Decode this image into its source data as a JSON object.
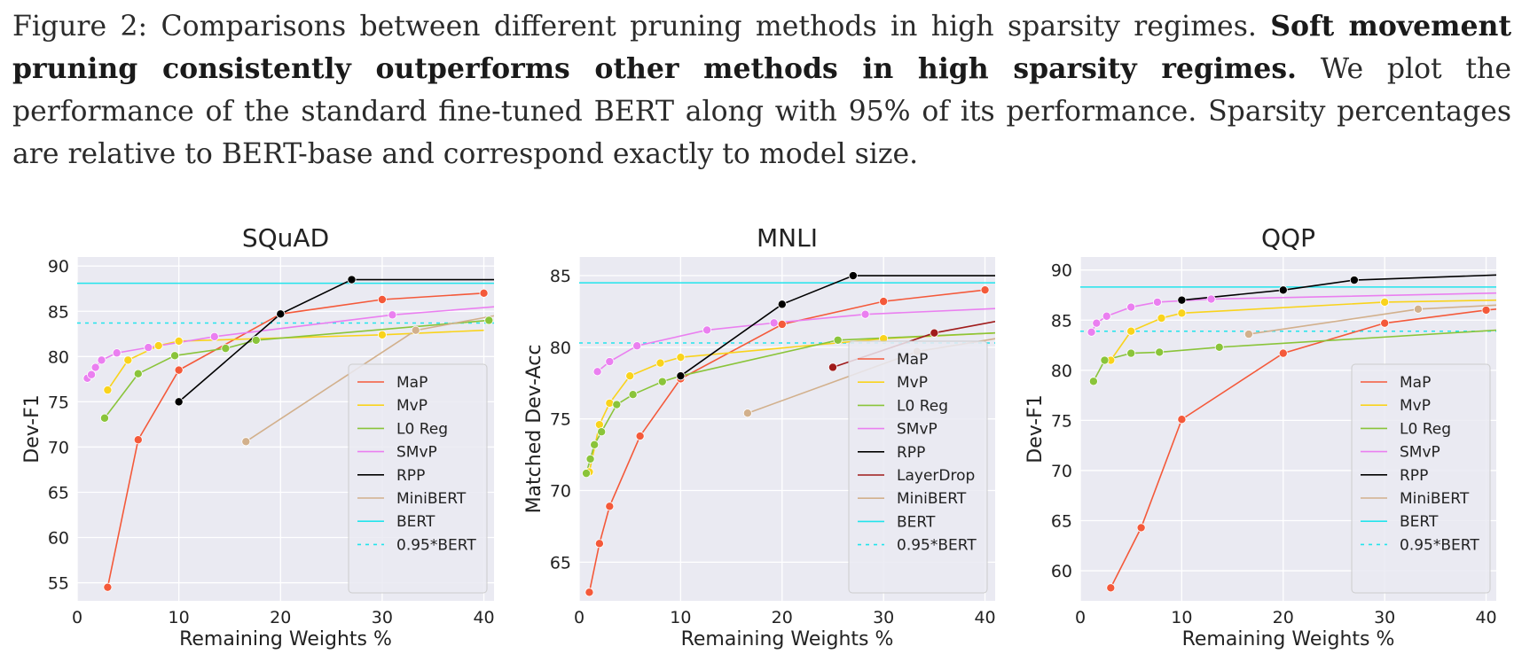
{
  "caption": {
    "prefix": "Figure 2: Comparisons between different pruning methods in high sparsity regimes. ",
    "bold": "Soft movement pruning consistently outperforms other methods in high sparsity regimes.",
    "suffix": " We plot the performance of the standard fine-tuned BERT along with 95% of its performance. Sparsity percentages are relative to BERT-base and correspond exactly to model size."
  },
  "colors": {
    "MaP": "#f4593a",
    "MvP": "#f9d31c",
    "L0 Reg": "#8ac43a",
    "SMvP": "#ea7ff0",
    "RPP": "#000000",
    "LayerDrop": "#a01b1b",
    "MiniBERT": "#d2b08c",
    "BERT": "#22e4ec",
    "0.95*BERT": "#22e4ec",
    "panel_bg": "#eaeaf2",
    "grid": "#ffffff"
  },
  "chart_data": [
    {
      "type": "line",
      "title": "SQuAD",
      "xlabel": "Remaining Weights %",
      "ylabel": "Dev-F1",
      "xlim": [
        0,
        41
      ],
      "ylim": [
        53,
        91
      ],
      "xticks": [
        0,
        10,
        20,
        30,
        40
      ],
      "yticks": [
        55,
        60,
        65,
        70,
        75,
        80,
        85,
        90
      ],
      "legend_position": "lower-right",
      "series": [
        {
          "name": "MaP",
          "x": [
            3,
            6,
            10,
            20,
            30,
            40
          ],
          "y": [
            54.5,
            70.8,
            78.5,
            84.7,
            86.3,
            87.0
          ],
          "markers": true
        },
        {
          "name": "MvP",
          "x": [
            3,
            5,
            8,
            10,
            30,
            40
          ],
          "y": [
            76.3,
            79.6,
            81.2,
            81.7,
            82.4,
            82.9
          ],
          "markers": true,
          "marker_idx": [
            0,
            1,
            2,
            3,
            4
          ]
        },
        {
          "name": "L0 Reg",
          "x": [
            2.7,
            6,
            9.6,
            14.6,
            17.6,
            40.5
          ],
          "y": [
            73.2,
            78.1,
            80.1,
            80.9,
            81.8,
            84.0
          ],
          "markers": true
        },
        {
          "name": "SMvP",
          "x": [
            1,
            1.4,
            1.8,
            2.4,
            3.9,
            7,
            13.5,
            31,
            41
          ],
          "y": [
            77.6,
            78.0,
            78.8,
            79.6,
            80.4,
            81.0,
            82.2,
            84.6,
            85.5
          ],
          "markers": true,
          "marker_idx": [
            0,
            1,
            2,
            3,
            4,
            5,
            6,
            7
          ]
        },
        {
          "name": "RPP",
          "x": [
            10,
            20,
            27,
            41
          ],
          "y": [
            75.0,
            84.7,
            88.5,
            88.5
          ],
          "markers": true,
          "marker_idx": [
            0,
            1,
            2
          ]
        },
        {
          "name": "MiniBERT",
          "x": [
            16.6,
            33.3,
            41
          ],
          "y": [
            70.6,
            82.9,
            84.5
          ],
          "markers": true,
          "marker_idx": [
            0,
            1
          ]
        },
        {
          "name": "BERT",
          "hline": 88.1
        },
        {
          "name": "0.95*BERT",
          "hline": 83.7,
          "dashed": true
        }
      ],
      "legend": [
        "MaP",
        "MvP",
        "L0 Reg",
        "SMvP",
        "RPP",
        "MiniBERT",
        "BERT",
        "0.95*BERT"
      ]
    },
    {
      "type": "line",
      "title": "MNLI",
      "xlabel": "Remaining Weights %",
      "ylabel": "Matched Dev-Acc",
      "xlim": [
        0,
        41
      ],
      "ylim": [
        62.3,
        86.3
      ],
      "xticks": [
        0,
        10,
        20,
        30,
        40
      ],
      "yticks": [
        65,
        70,
        75,
        80,
        85
      ],
      "legend_position": "lower-right",
      "series": [
        {
          "name": "MaP",
          "x": [
            1,
            2,
            3,
            6,
            10,
            20,
            30,
            40
          ],
          "y": [
            62.9,
            66.3,
            68.9,
            73.8,
            77.8,
            81.6,
            83.2,
            84.0
          ],
          "markers": true
        },
        {
          "name": "MvP",
          "x": [
            1,
            2,
            3,
            5,
            8,
            10,
            30,
            41
          ],
          "y": [
            71.3,
            74.6,
            76.1,
            78.0,
            78.9,
            79.3,
            80.6,
            81.0
          ],
          "markers": true,
          "marker_idx": [
            0,
            1,
            2,
            3,
            4,
            5,
            6
          ]
        },
        {
          "name": "L0 Reg",
          "x": [
            0.7,
            1.1,
            1.5,
            2.2,
            3.7,
            5.3,
            8.2,
            10,
            25.5,
            41
          ],
          "y": [
            71.2,
            72.2,
            73.2,
            74.1,
            76.0,
            76.7,
            77.6,
            78.0,
            80.5,
            81.0
          ],
          "markers": true,
          "marker_idx": [
            0,
            1,
            2,
            3,
            4,
            5,
            6,
            7,
            8
          ]
        },
        {
          "name": "SMvP",
          "x": [
            1.8,
            3,
            5.7,
            12.6,
            19.2,
            28.2,
            41
          ],
          "y": [
            78.3,
            79.0,
            80.1,
            81.2,
            81.7,
            82.3,
            82.7
          ],
          "markers": true,
          "marker_idx": [
            0,
            1,
            2,
            3,
            4,
            5
          ]
        },
        {
          "name": "RPP",
          "x": [
            10,
            20,
            27,
            41
          ],
          "y": [
            78.0,
            83.0,
            85.0,
            85.0
          ],
          "markers": true,
          "marker_idx": [
            0,
            1,
            2
          ]
        },
        {
          "name": "LayerDrop",
          "x": [
            25,
            35,
            41
          ],
          "y": [
            78.6,
            81.0,
            81.8
          ],
          "markers": true,
          "marker_idx": [
            0,
            1
          ]
        },
        {
          "name": "MiniBERT",
          "x": [
            16.6,
            33.3,
            41
          ],
          "y": [
            75.4,
            79.7,
            80.6
          ],
          "markers": true,
          "marker_idx": [
            0,
            1
          ]
        },
        {
          "name": "BERT",
          "hline": 84.5
        },
        {
          "name": "0.95*BERT",
          "hline": 80.3,
          "dashed": true
        }
      ],
      "legend": [
        "MaP",
        "MvP",
        "L0 Reg",
        "SMvP",
        "RPP",
        "LayerDrop",
        "MiniBERT",
        "BERT",
        "0.95*BERT"
      ]
    },
    {
      "type": "line",
      "title": "QQP",
      "xlabel": "Remaining Weights %",
      "ylabel": "Dev-F1",
      "xlim": [
        0,
        41
      ],
      "ylim": [
        57,
        91.3
      ],
      "xticks": [
        0,
        10,
        20,
        30,
        40
      ],
      "yticks": [
        60,
        65,
        70,
        75,
        80,
        85,
        90
      ],
      "legend_position": "lower-right",
      "series": [
        {
          "name": "MaP",
          "x": [
            3,
            6,
            10,
            20,
            30,
            40,
            41
          ],
          "y": [
            58.3,
            64.3,
            75.1,
            81.7,
            84.7,
            86.0,
            86.1
          ],
          "markers": true,
          "marker_idx": [
            0,
            1,
            2,
            3,
            4,
            5
          ]
        },
        {
          "name": "MvP",
          "x": [
            3,
            5,
            8,
            10,
            30,
            41
          ],
          "y": [
            81.0,
            83.9,
            85.2,
            85.7,
            86.8,
            87.0
          ],
          "markers": true,
          "marker_idx": [
            0,
            1,
            2,
            3,
            4
          ]
        },
        {
          "name": "L0 Reg",
          "x": [
            1.3,
            2.4,
            5,
            7.8,
            13.7,
            41
          ],
          "y": [
            78.9,
            81.0,
            81.7,
            81.8,
            82.3,
            84.0
          ],
          "markers": true,
          "marker_idx": [
            0,
            1,
            2,
            3,
            4
          ]
        },
        {
          "name": "SMvP",
          "x": [
            1.1,
            1.6,
            2.6,
            5,
            7.6,
            12.9,
            41
          ],
          "y": [
            83.8,
            84.7,
            85.4,
            86.3,
            86.8,
            87.1,
            87.7
          ],
          "markers": true,
          "marker_idx": [
            0,
            1,
            2,
            3,
            4,
            5
          ]
        },
        {
          "name": "RPP",
          "x": [
            10,
            20,
            27,
            41
          ],
          "y": [
            87.0,
            88.0,
            89.0,
            89.5
          ],
          "markers": true,
          "marker_idx": [
            0,
            1,
            2
          ]
        },
        {
          "name": "MiniBERT",
          "x": [
            16.6,
            33.3,
            41
          ],
          "y": [
            83.6,
            86.1,
            86.5
          ],
          "markers": true,
          "marker_idx": [
            0,
            1
          ]
        },
        {
          "name": "BERT",
          "hline": 88.3
        },
        {
          "name": "0.95*BERT",
          "hline": 83.9,
          "dashed": true
        }
      ],
      "legend": [
        "MaP",
        "MvP",
        "L0 Reg",
        "SMvP",
        "RPP",
        "MiniBERT",
        "BERT",
        "0.95*BERT"
      ]
    }
  ]
}
